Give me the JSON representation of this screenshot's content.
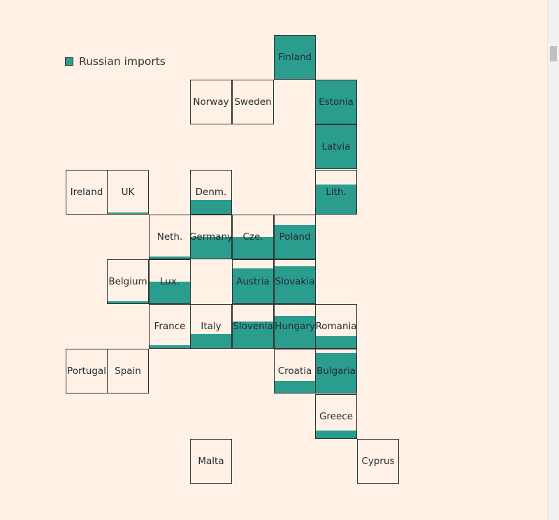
{
  "legend": {
    "label": "Russian imports",
    "color": "#2a9d8f"
  },
  "chart_data": {
    "type": "tile-map",
    "title": "",
    "series_name": "Russian imports",
    "value_unit": "fraction of tile filled",
    "tiles": [
      {
        "name": "Finland",
        "col": 6,
        "row": 0,
        "value": 1.0
      },
      {
        "name": "Norway",
        "col": 4,
        "row": 1,
        "value": 0.0
      },
      {
        "name": "Sweden",
        "col": 5,
        "row": 1,
        "value": 0.0
      },
      {
        "name": "Estonia",
        "col": 7,
        "row": 1,
        "value": 1.0
      },
      {
        "name": "Latvia",
        "col": 7,
        "row": 2,
        "value": 1.0
      },
      {
        "name": "Ireland",
        "col": 1,
        "row": 3,
        "value": 0.0
      },
      {
        "name": "UK",
        "col": 2,
        "row": 3,
        "value": 0.03
      },
      {
        "name": "Denm.",
        "col": 4,
        "row": 3,
        "value": 0.33
      },
      {
        "name": "Lith.",
        "col": 7,
        "row": 3,
        "value": 0.67
      },
      {
        "name": "Neth.",
        "col": 3,
        "row": 4,
        "value": 0.05
      },
      {
        "name": "Germany",
        "col": 4,
        "row": 4,
        "value": 0.5
      },
      {
        "name": "Cze.",
        "col": 5,
        "row": 4,
        "value": 0.5
      },
      {
        "name": "Poland",
        "col": 6,
        "row": 4,
        "value": 0.78
      },
      {
        "name": "Belgium",
        "col": 2,
        "row": 5,
        "value": 0.05
      },
      {
        "name": "Lux.",
        "col": 3,
        "row": 5,
        "value": 0.5
      },
      {
        "name": "Austria",
        "col": 5,
        "row": 5,
        "value": 0.8
      },
      {
        "name": "Slovakia",
        "col": 6,
        "row": 5,
        "value": 0.86
      },
      {
        "name": "France",
        "col": 3,
        "row": 6,
        "value": 0.06
      },
      {
        "name": "Italy",
        "col": 4,
        "row": 6,
        "value": 0.33
      },
      {
        "name": "Slovenia",
        "col": 5,
        "row": 6,
        "value": 0.62
      },
      {
        "name": "Hungary",
        "col": 6,
        "row": 6,
        "value": 0.75
      },
      {
        "name": "Romania",
        "col": 7,
        "row": 6,
        "value": 0.28
      },
      {
        "name": "Portugal",
        "col": 1,
        "row": 7,
        "value": 0.0
      },
      {
        "name": "Spain",
        "col": 2,
        "row": 7,
        "value": 0.0
      },
      {
        "name": "Croatia",
        "col": 6,
        "row": 7,
        "value": 0.28
      },
      {
        "name": "Bulgaria",
        "col": 7,
        "row": 7,
        "value": 0.92
      },
      {
        "name": "Greece",
        "col": 7,
        "row": 8,
        "value": 0.18
      },
      {
        "name": "Malta",
        "col": 4,
        "row": 9,
        "value": 0.0
      },
      {
        "name": "Cyprus",
        "col": 8,
        "row": 9,
        "value": 0.0
      }
    ]
  }
}
